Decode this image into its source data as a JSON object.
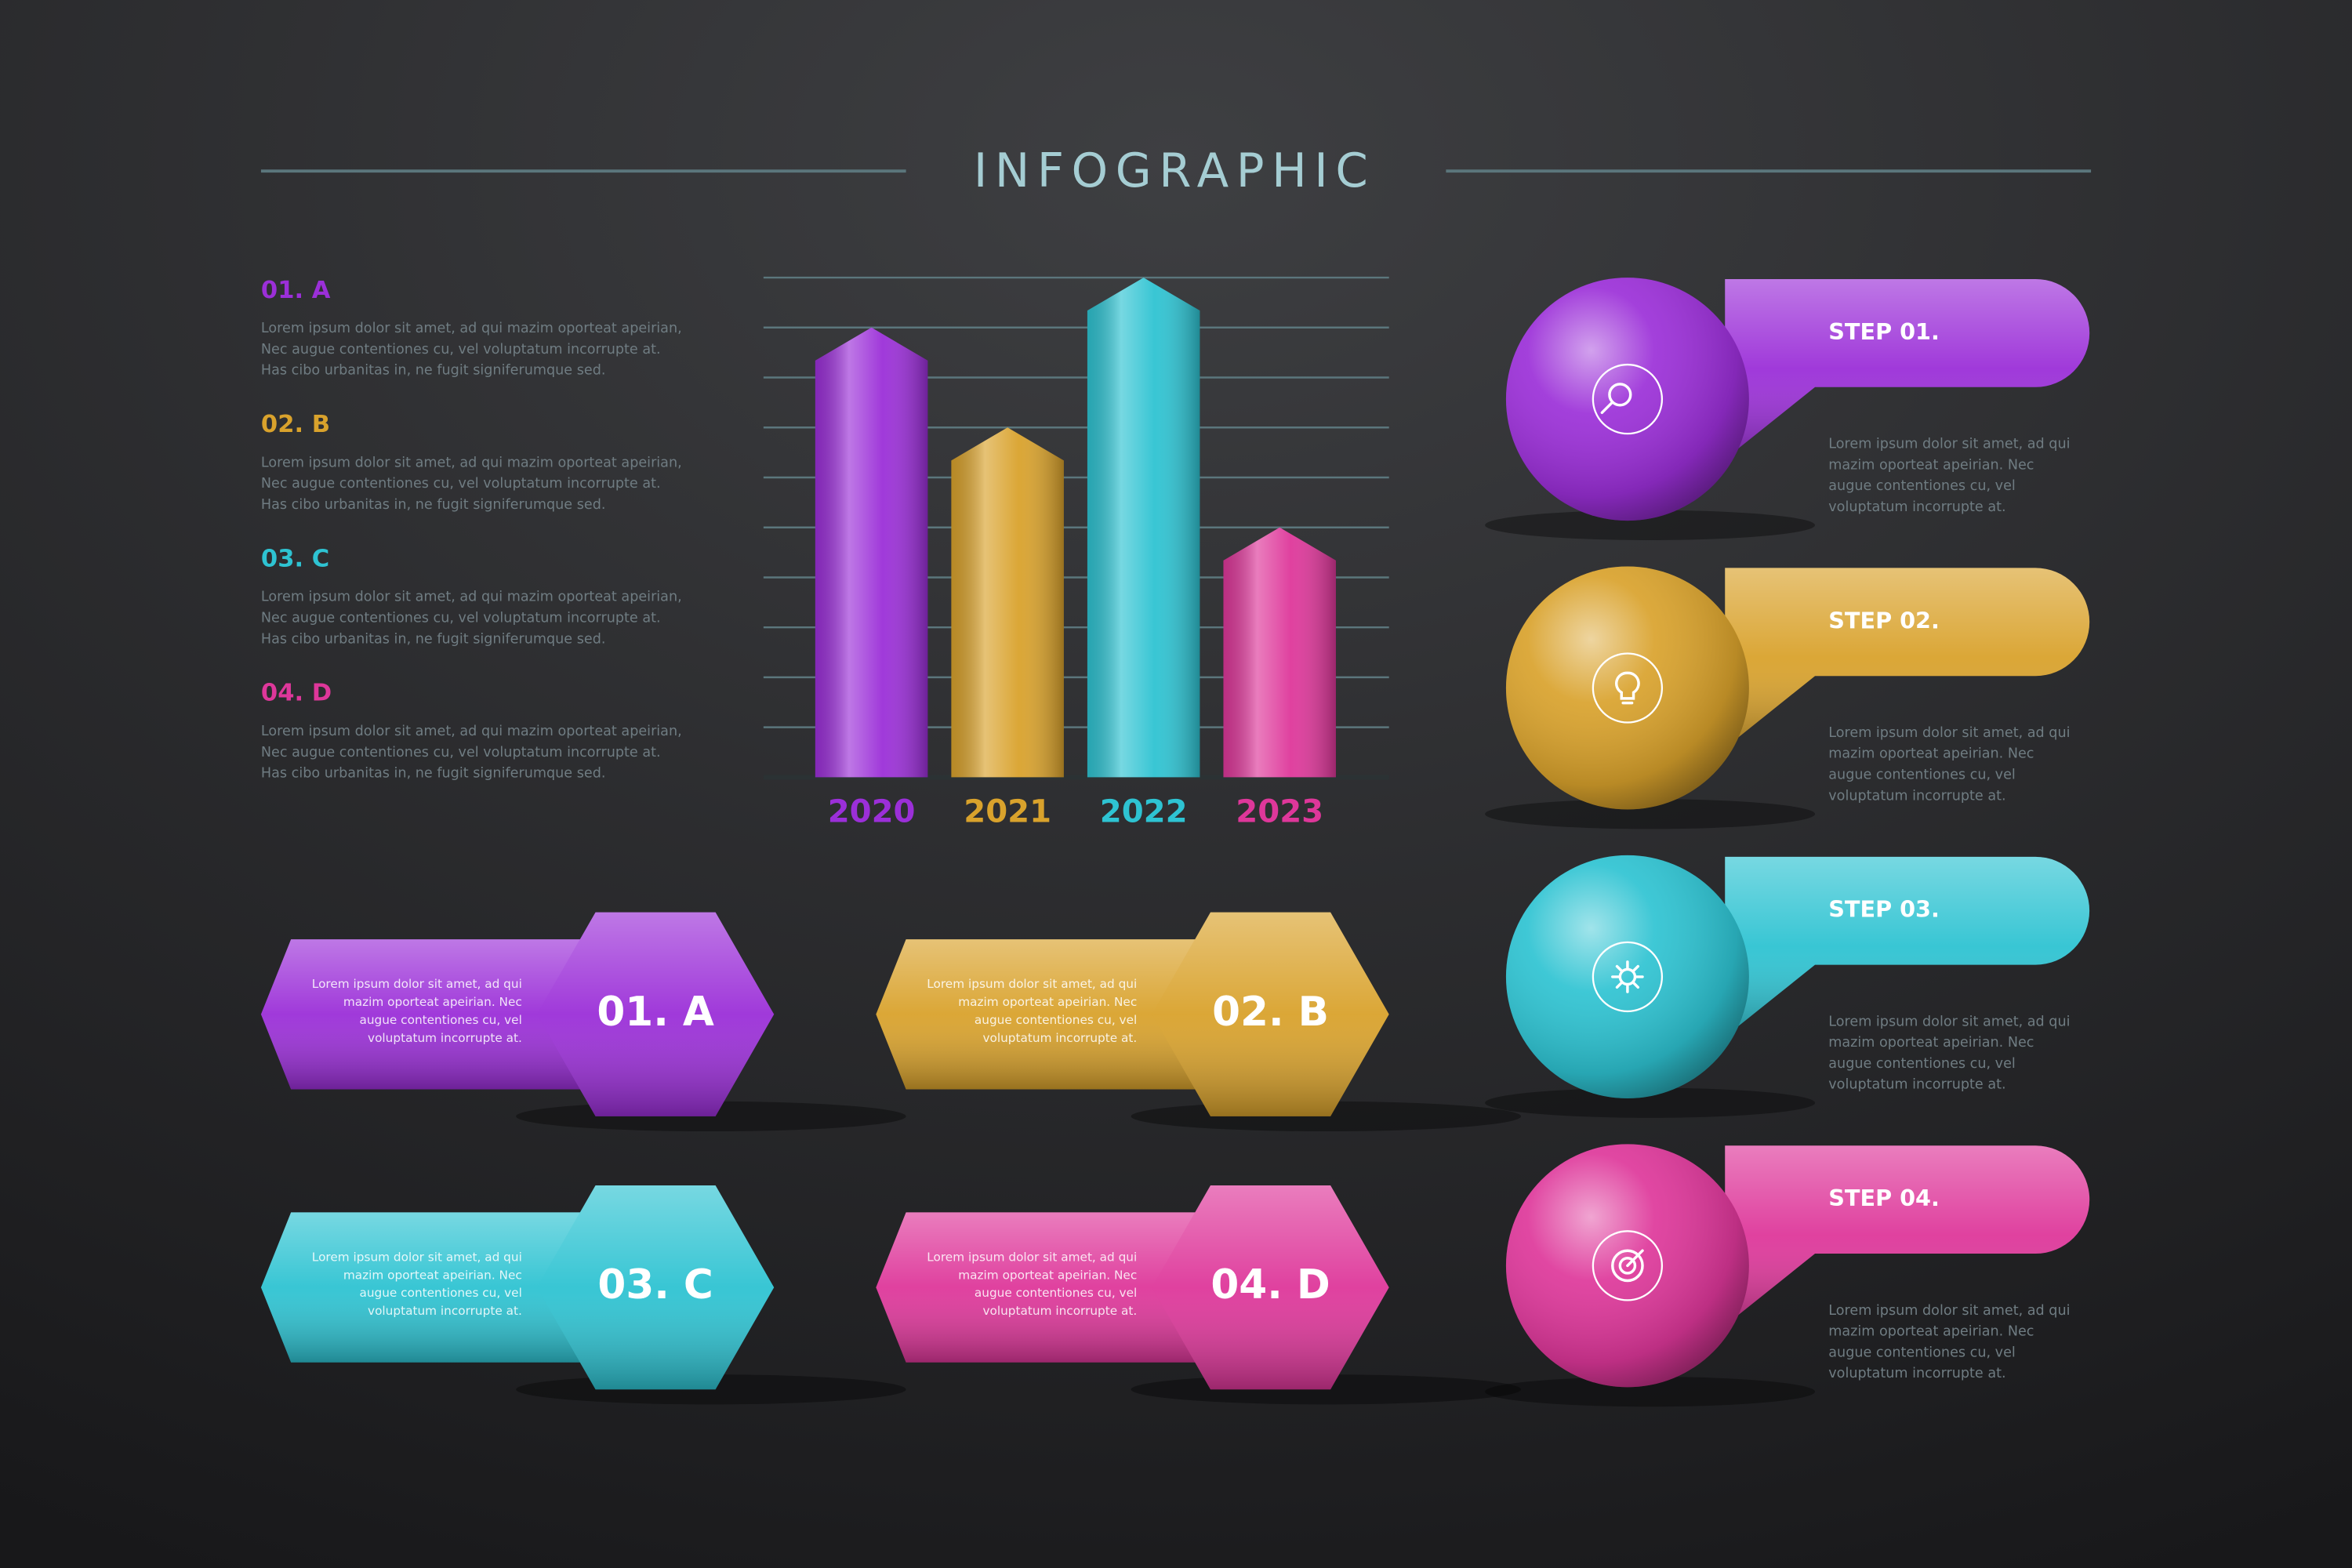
{
  "title": "INFOGRAPHIC",
  "palette": [
    "#9b2fd8",
    "#d9a22c",
    "#2ec3d2",
    "#de379a"
  ],
  "list": [
    {
      "heading": "01. A",
      "lines": [
        "Lorem ipsum dolor sit amet, ad qui mazim oporteat apeirian,",
        "Nec augue contentiones cu, vel voluptatum incorrupte at.",
        "Has cibo urbanitas in, ne fugit signiferumque sed."
      ]
    },
    {
      "heading": "02. B",
      "lines": [
        "Lorem ipsum dolor sit amet, ad qui mazim oporteat apeirian,",
        "Nec augue contentiones cu, vel voluptatum incorrupte at.",
        "Has cibo urbanitas in, ne fugit signiferumque sed."
      ]
    },
    {
      "heading": "03. C",
      "lines": [
        "Lorem ipsum dolor sit amet, ad qui mazim oporteat apeirian,",
        "Nec augue contentiones cu, vel voluptatum incorrupte at.",
        "Has cibo urbanitas in, ne fugit signiferumque sed."
      ]
    },
    {
      "heading": "04. D",
      "lines": [
        "Lorem ipsum dolor sit amet, ad qui mazim oporteat apeirian,",
        "Nec augue contentiones cu, vel voluptatum incorrupte at.",
        "Has cibo urbanitas in, ne fugit signiferumque sed."
      ]
    }
  ],
  "chart_data": {
    "type": "bar",
    "categories": [
      "2020",
      "2021",
      "2022",
      "2023"
    ],
    "values": [
      9,
      7,
      10,
      5
    ],
    "colors": [
      "#9b2fd8",
      "#d9a22c",
      "#2ec3d2",
      "#de379a"
    ],
    "ylim": [
      0,
      10
    ],
    "grid_lines": [
      0,
      1,
      2,
      3,
      4,
      5,
      6,
      7,
      8,
      9,
      10
    ],
    "grid": true
  },
  "cards": [
    {
      "label": "01. A",
      "lines": [
        "Lorem ipsum dolor sit amet, ad qui",
        "mazim oporteat apeirian. Nec",
        "augue contentiones cu, vel",
        "voluptatum incorrupte at."
      ]
    },
    {
      "label": "02. B",
      "lines": [
        "Lorem ipsum dolor sit amet, ad qui",
        "mazim oporteat apeirian. Nec",
        "augue contentiones cu, vel",
        "voluptatum incorrupte at."
      ]
    },
    {
      "label": "03. C",
      "lines": [
        "Lorem ipsum dolor sit amet, ad qui",
        "mazim oporteat apeirian. Nec",
        "augue contentiones cu, vel",
        "voluptatum incorrupte at."
      ]
    },
    {
      "label": "04. D",
      "lines": [
        "Lorem ipsum dolor sit amet, ad qui",
        "mazim oporteat apeirian. Nec",
        "augue contentiones cu, vel",
        "voluptatum incorrupte at."
      ]
    }
  ],
  "steps": [
    {
      "label": "STEP 01.",
      "lines": [
        "Lorem ipsum dolor sit amet, ad qui",
        "mazim oporteat apeirian. Nec",
        "augue contentiones cu, vel",
        "voluptatum incorrupte at."
      ]
    },
    {
      "label": "STEP 02.",
      "lines": [
        "Lorem ipsum dolor sit amet, ad qui",
        "mazim oporteat apeirian. Nec",
        "augue contentiones cu, vel",
        "voluptatum incorrupte at."
      ]
    },
    {
      "label": "STEP 03.",
      "lines": [
        "Lorem ipsum dolor sit amet, ad qui",
        "mazim oporteat apeirian. Nec",
        "augue contentiones cu, vel",
        "voluptatum incorrupte at."
      ]
    },
    {
      "label": "STEP 04.",
      "lines": [
        "Lorem ipsum dolor sit amet, ad qui",
        "mazim oporteat apeirian. Nec",
        "augue contentiones cu, vel",
        "voluptatum incorrupte at."
      ]
    }
  ]
}
